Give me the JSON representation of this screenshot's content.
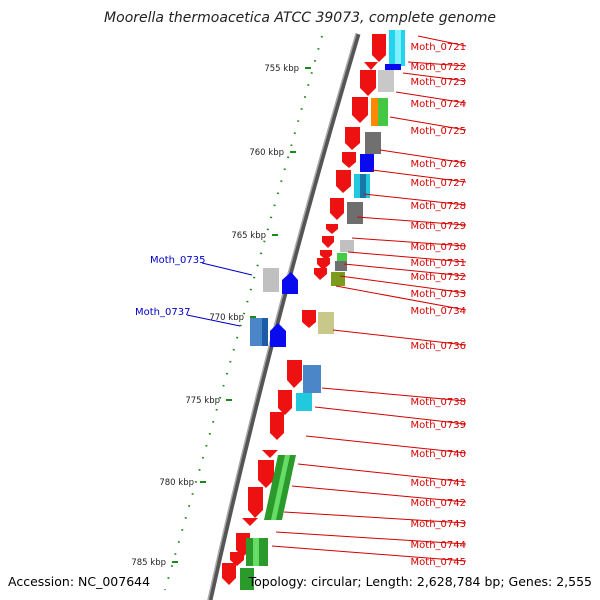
{
  "title": "Moorella thermoacetica ATCC 39073, complete genome",
  "footer": {
    "accession": "Accession: NC_007644",
    "summary": "Topology: circular; Length: 2,628,784 bp; Genes: 2,555"
  },
  "colors": {
    "forward_label": "#d40000",
    "reverse_label": "#0000c8",
    "backbone": "#666666",
    "tick": "#1a8a1a"
  },
  "scale": {
    "unit": "kbp",
    "ticks": [
      "755 kbp",
      "760 kbp",
      "765 kbp",
      "770 kbp",
      "775 kbp",
      "780 kbp",
      "785 kbp"
    ]
  },
  "forward_genes": [
    {
      "name": "Moth_0721"
    },
    {
      "name": "Moth_0722"
    },
    {
      "name": "Moth_0723"
    },
    {
      "name": "Moth_0724"
    },
    {
      "name": "Moth_0725"
    },
    {
      "name": "Moth_0726"
    },
    {
      "name": "Moth_0727"
    },
    {
      "name": "Moth_0728"
    },
    {
      "name": "Moth_0729"
    },
    {
      "name": "Moth_0730"
    },
    {
      "name": "Moth_0731"
    },
    {
      "name": "Moth_0732"
    },
    {
      "name": "Moth_0733"
    },
    {
      "name": "Moth_0734"
    },
    {
      "name": "Moth_0736"
    },
    {
      "name": "Moth_0738"
    },
    {
      "name": "Moth_0739"
    },
    {
      "name": "Moth_0740"
    },
    {
      "name": "Moth_0741"
    },
    {
      "name": "Moth_0742"
    },
    {
      "name": "Moth_0743"
    },
    {
      "name": "Moth_0744"
    },
    {
      "name": "Moth_0745"
    }
  ],
  "reverse_genes": [
    {
      "name": "Moth_0735"
    },
    {
      "name": "Moth_0737"
    }
  ]
}
